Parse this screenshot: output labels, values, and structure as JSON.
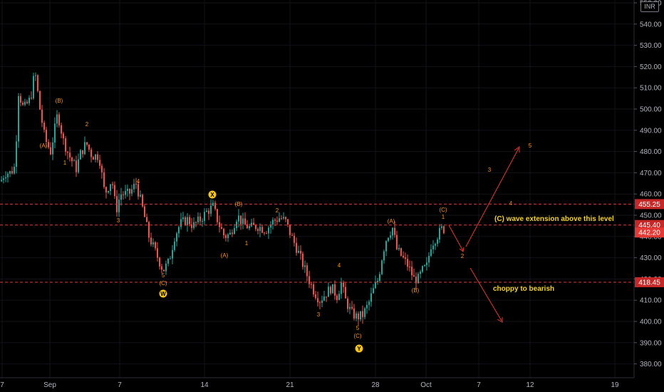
{
  "currency": "INR",
  "price_axis": {
    "ticks": [
      "550.00",
      "540.00",
      "530.00",
      "520.00",
      "510.00",
      "500.00",
      "490.00",
      "480.00",
      "470.00",
      "460.00",
      "450.00",
      "440.00",
      "430.00",
      "420.00",
      "410.00",
      "400.00",
      "390.00",
      "380.00"
    ]
  },
  "time_axis": {
    "labels": [
      "7",
      "Sep",
      "7",
      "14",
      "21",
      "28",
      "Oct",
      "7",
      "12",
      "19"
    ]
  },
  "levels": [
    {
      "price": 455.25,
      "label": "455.25",
      "color": "#e53935"
    },
    {
      "price": 445.4,
      "label": "445.40",
      "color": "#e53935"
    },
    {
      "price": 442.2,
      "label": "442.20",
      "color": "#e53935"
    },
    {
      "price": 418.45,
      "label": "418.45",
      "color": "#e53935"
    }
  ],
  "annotations": [
    {
      "text": "(C) wave extension above this level"
    },
    {
      "text": "choppy to bearish"
    }
  ],
  "wave_labels": [
    "(A)",
    "(B)",
    "1",
    "2",
    "3",
    "4",
    "5",
    "(C)",
    "(A)",
    "(B)",
    "1",
    "2",
    "3",
    "4",
    "5",
    "(C)",
    "(A)",
    "(B)",
    "(C)",
    "1",
    "2",
    "3",
    "4",
    "5"
  ],
  "circle_labels": [
    "W",
    "X",
    "Y"
  ],
  "chart_data": {
    "type": "candlestick",
    "x": [
      "Aug 30",
      "Aug 31",
      "Sep 1",
      "Sep 2",
      "Sep 3",
      "Sep 6",
      "Sep 7",
      "Sep 8",
      "Sep 9",
      "Sep 10",
      "Sep 13",
      "Sep 14",
      "Sep 15",
      "Sep 16",
      "Sep 17",
      "Sep 20",
      "Sep 21",
      "Sep 22",
      "Sep 23",
      "Sep 24",
      "Sep 27",
      "Sep 28",
      "Sep 29",
      "Sep 30",
      "Oct 1"
    ],
    "close": [
      470,
      505,
      490,
      485,
      482,
      462,
      466,
      448,
      428,
      440,
      452,
      445,
      448,
      447,
      446,
      440,
      420,
      410,
      414,
      405,
      432,
      442,
      428,
      421,
      444
    ],
    "ylim": [
      375,
      552
    ],
    "colors": {
      "up": "#26a69a",
      "down": "#ef5350"
    }
  }
}
